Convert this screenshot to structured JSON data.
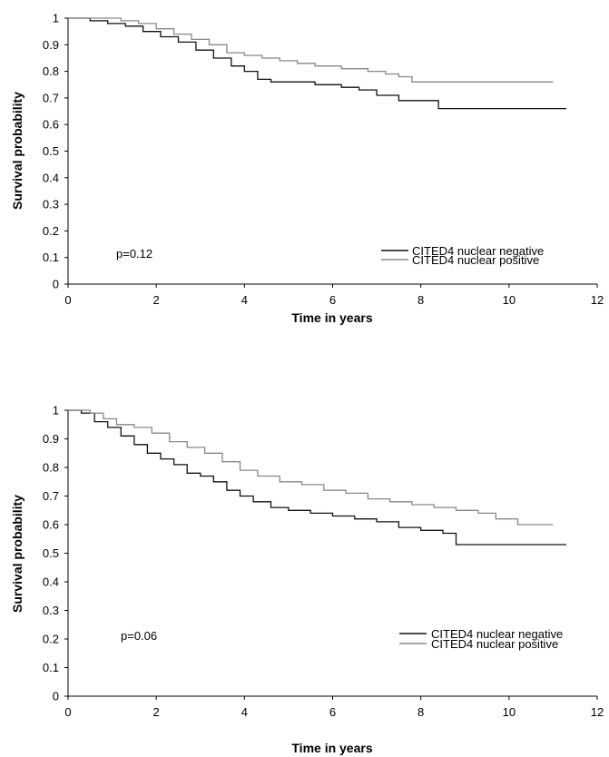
{
  "chart_data": [
    {
      "type": "line",
      "step": true,
      "xlabel": "Time in years",
      "ylabel": "Survival probability",
      "xlim": [
        0,
        12
      ],
      "ylim": [
        0,
        1
      ],
      "xticks": [
        "0",
        "2",
        "4",
        "6",
        "8",
        "10",
        "12"
      ],
      "yticks": [
        "0",
        "0.1",
        "0.2",
        "0.3",
        "0.4",
        "0.5",
        "0.6",
        "0.7",
        "0.8",
        "0.9",
        "1"
      ],
      "grid": false,
      "legend_position": "bottom-right",
      "annotation": "p=0.12",
      "series": [
        {
          "name": "CITED4 nuclear negative",
          "color": "#111111",
          "points": [
            [
              0,
              1
            ],
            [
              0.4,
              1
            ],
            [
              0.5,
              0.99
            ],
            [
              0.9,
              0.98
            ],
            [
              1.3,
              0.97
            ],
            [
              1.7,
              0.95
            ],
            [
              2.1,
              0.93
            ],
            [
              2.5,
              0.91
            ],
            [
              2.9,
              0.88
            ],
            [
              3.3,
              0.85
            ],
            [
              3.7,
              0.82
            ],
            [
              4.0,
              0.8
            ],
            [
              4.3,
              0.77
            ],
            [
              4.6,
              0.76
            ],
            [
              5.0,
              0.76
            ],
            [
              5.6,
              0.75
            ],
            [
              6.2,
              0.74
            ],
            [
              6.6,
              0.73
            ],
            [
              7.0,
              0.71
            ],
            [
              7.5,
              0.69
            ],
            [
              8.0,
              0.69
            ],
            [
              8.4,
              0.66
            ],
            [
              9.0,
              0.66
            ],
            [
              11.3,
              0.66
            ]
          ]
        },
        {
          "name": "CITED4 nuclear positive",
          "color": "#888888",
          "points": [
            [
              0,
              1
            ],
            [
              1.0,
              1
            ],
            [
              1.2,
              0.99
            ],
            [
              1.6,
              0.98
            ],
            [
              2.0,
              0.96
            ],
            [
              2.4,
              0.94
            ],
            [
              2.8,
              0.92
            ],
            [
              3.2,
              0.9
            ],
            [
              3.6,
              0.87
            ],
            [
              4.0,
              0.86
            ],
            [
              4.4,
              0.85
            ],
            [
              4.8,
              0.84
            ],
            [
              5.2,
              0.83
            ],
            [
              5.6,
              0.82
            ],
            [
              6.2,
              0.81
            ],
            [
              6.8,
              0.8
            ],
            [
              7.2,
              0.79
            ],
            [
              7.5,
              0.78
            ],
            [
              7.8,
              0.76
            ],
            [
              8.5,
              0.76
            ],
            [
              9.5,
              0.76
            ],
            [
              11.0,
              0.76
            ]
          ]
        }
      ]
    },
    {
      "type": "line",
      "step": true,
      "xlabel": "Time in years",
      "ylabel": "Survival probability",
      "xlim": [
        0,
        12
      ],
      "ylim": [
        0,
        1
      ],
      "xticks": [
        "0",
        "2",
        "4",
        "6",
        "8",
        "10",
        "12"
      ],
      "yticks": [
        "0",
        "0.1",
        "0.2",
        "0.3",
        "0.4",
        "0.5",
        "0.6",
        "0.7",
        "0.8",
        "0.9",
        "1"
      ],
      "grid": false,
      "legend_position": "bottom-right",
      "annotation": "p=0.06",
      "series": [
        {
          "name": "CITED4 nuclear negative",
          "color": "#111111",
          "points": [
            [
              0,
              1
            ],
            [
              0.3,
              0.99
            ],
            [
              0.6,
              0.96
            ],
            [
              0.9,
              0.94
            ],
            [
              1.2,
              0.91
            ],
            [
              1.5,
              0.88
            ],
            [
              1.8,
              0.85
            ],
            [
              2.1,
              0.83
            ],
            [
              2.4,
              0.81
            ],
            [
              2.7,
              0.78
            ],
            [
              3.0,
              0.77
            ],
            [
              3.3,
              0.75
            ],
            [
              3.6,
              0.72
            ],
            [
              3.9,
              0.7
            ],
            [
              4.2,
              0.68
            ],
            [
              4.6,
              0.66
            ],
            [
              5.0,
              0.65
            ],
            [
              5.5,
              0.64
            ],
            [
              6.0,
              0.63
            ],
            [
              6.5,
              0.62
            ],
            [
              7.0,
              0.61
            ],
            [
              7.5,
              0.59
            ],
            [
              8.0,
              0.58
            ],
            [
              8.5,
              0.57
            ],
            [
              8.8,
              0.53
            ],
            [
              9.5,
              0.53
            ],
            [
              11.3,
              0.53
            ]
          ]
        },
        {
          "name": "CITED4 nuclear positive",
          "color": "#888888",
          "points": [
            [
              0,
              1
            ],
            [
              0.5,
              0.99
            ],
            [
              0.8,
              0.97
            ],
            [
              1.1,
              0.95
            ],
            [
              1.5,
              0.94
            ],
            [
              1.9,
              0.92
            ],
            [
              2.3,
              0.89
            ],
            [
              2.7,
              0.87
            ],
            [
              3.1,
              0.85
            ],
            [
              3.5,
              0.82
            ],
            [
              3.9,
              0.79
            ],
            [
              4.3,
              0.77
            ],
            [
              4.8,
              0.75
            ],
            [
              5.3,
              0.74
            ],
            [
              5.8,
              0.72
            ],
            [
              6.3,
              0.71
            ],
            [
              6.8,
              0.69
            ],
            [
              7.3,
              0.68
            ],
            [
              7.8,
              0.67
            ],
            [
              8.3,
              0.66
            ],
            [
              8.8,
              0.65
            ],
            [
              9.3,
              0.64
            ],
            [
              9.7,
              0.62
            ],
            [
              10.2,
              0.6
            ],
            [
              11.0,
              0.6
            ]
          ]
        }
      ]
    }
  ]
}
